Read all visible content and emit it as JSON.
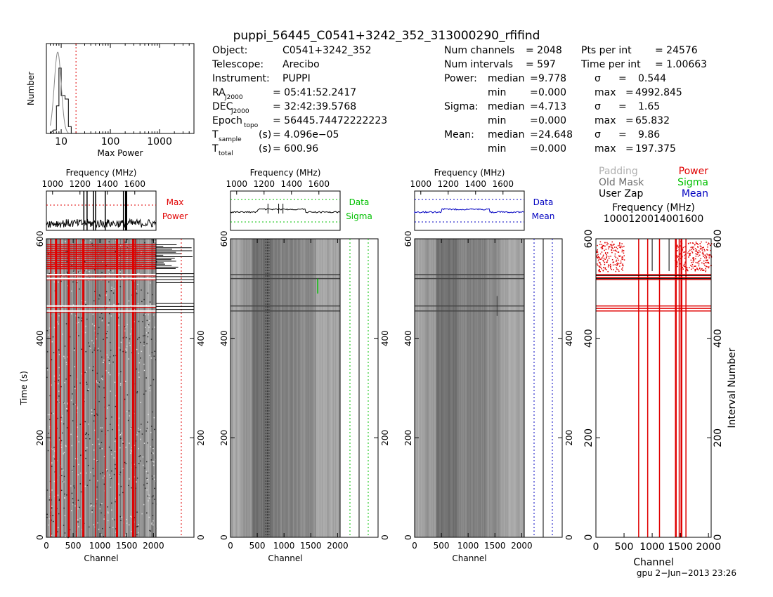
{
  "title": "puppi_56445_C0541+3242_352_313000290_rfifind",
  "info_left": [
    {
      "label": "Object:",
      "value": "C0541+3242_352"
    },
    {
      "label": "Telescope:",
      "value": "Arecibo"
    },
    {
      "label": "Instrument:",
      "value": "PUPPI"
    }
  ],
  "coords": [
    {
      "sym": "RA",
      "sub": "J2000",
      "unit": "",
      "value": "= 05:41:52.2417"
    },
    {
      "sym": "DEC",
      "sub": "J2000",
      "unit": "",
      "value": "= 32:42:39.5768"
    },
    {
      "sym": "Epoch",
      "sub": "topo",
      "unit": "",
      "value": "= 56445.74472222223"
    },
    {
      "sym": "T",
      "sub": "sample",
      "unit": "(s)",
      "value": "= 4.096e−05"
    },
    {
      "sym": "T",
      "sub": "total",
      "unit": "(s)",
      "value": "= 600.96"
    }
  ],
  "stats_top": [
    {
      "label": "Num channels",
      "value": "= 2048",
      "label2": "Pts per int",
      "value2": "= 24576"
    },
    {
      "label": "Num intervals",
      "value": "= 597",
      "label2": "Time per int",
      "value2": "= 1.00663"
    }
  ],
  "stats": [
    {
      "name": "Power:",
      "median": "9.778",
      "min": "0.000",
      "sigma": "0.544",
      "max": "4992.845"
    },
    {
      "name": "Sigma:",
      "median": "4.713",
      "min": "0.000",
      "sigma": "1.65",
      "max": "65.832"
    },
    {
      "name": "Mean:",
      "median": "24.648",
      "min": "0.000",
      "sigma": "9.86",
      "max": "197.375"
    }
  ],
  "stat_words": {
    "median": "median",
    "min": "min",
    "sigma": "σ",
    "max": "max",
    "eq": "="
  },
  "legend": [
    {
      "text": "Padding",
      "color": "#b0b0b0"
    },
    {
      "text": "Power",
      "color": "#e00000"
    },
    {
      "text": "Old Mask",
      "color": "#707070"
    },
    {
      "text": "Sigma",
      "color": "#00c000"
    },
    {
      "text": "User Zap",
      "color": "#000000"
    },
    {
      "text": "Mean",
      "color": "#0000c0"
    }
  ],
  "labels": {
    "frequency": "Frequency (MHz)",
    "channel": "Channel",
    "time": "Time (s)",
    "interval": "Interval Number",
    "number": "Number",
    "max_power": "Max Power",
    "max_label_1": "Max",
    "max_label_2": "Power",
    "data": "Data",
    "sigma": "Sigma",
    "mean": "Mean"
  },
  "footer": "gpu   2−Jun−2013 23:26",
  "colors": {
    "red": "#e00000",
    "green": "#00c000",
    "blue": "#0000c0",
    "black": "#000000"
  },
  "chart_data": [
    {
      "type": "histogram",
      "xscale": "log",
      "xlabel": "Max Power",
      "ylabel": "Number",
      "xlim": [
        5,
        5000
      ],
      "x_ticks": [
        10,
        100,
        1000
      ],
      "threshold": 20,
      "hist_x": [
        7,
        8,
        9,
        10,
        12,
        14
      ],
      "hist_y": [
        0.05,
        0.4,
        0.95,
        0.55,
        0.5,
        0.1
      ]
    },
    {
      "type": "heatmap",
      "name": "max_power_image",
      "xlabel": "Channel",
      "ylabel": "Time (s)",
      "xlim": [
        0,
        2048
      ],
      "ylim": [
        0,
        600
      ],
      "x_ticks": [
        0,
        500,
        1000,
        1500,
        2000
      ],
      "y_ticks": [
        0,
        200,
        400,
        600
      ],
      "freq_ticks": [
        1000,
        1200,
        1400,
        1600
      ],
      "freq_range": [
        955,
        1755
      ],
      "masked_channels": [
        80,
        180,
        260,
        420,
        560,
        680,
        700,
        920,
        1100,
        1320,
        1450,
        1620,
        1660
      ],
      "masked_times": [
        465,
        455,
        528,
        520
      ],
      "flag_zone": [
        540,
        590
      ]
    },
    {
      "type": "heatmap",
      "name": "sigma_image",
      "xlabel": "Channel",
      "xlim": [
        0,
        2048
      ],
      "ylim": [
        0,
        600
      ],
      "x_ticks": [
        0,
        500,
        1000,
        1500,
        2000
      ],
      "y_ticks": [
        0,
        200,
        400,
        600
      ],
      "freq_ticks": [
        1000,
        1200,
        1400,
        1600
      ]
    },
    {
      "type": "heatmap",
      "name": "mean_image",
      "xlabel": "Channel",
      "xlim": [
        0,
        2048
      ],
      "ylim": [
        0,
        600
      ],
      "x_ticks": [
        0,
        500,
        1000,
        1500,
        2000
      ],
      "y_ticks": [
        0,
        200,
        400,
        600
      ],
      "freq_ticks": [
        1000,
        1200,
        1400,
        1600
      ]
    },
    {
      "type": "mask",
      "name": "mask_image",
      "xlabel": "Channel",
      "ylabel": "Interval Number",
      "xlim": [
        0,
        2048
      ],
      "ylim": [
        0,
        600
      ],
      "x_ticks": [
        0,
        500,
        1000,
        1500,
        2000
      ],
      "y_ticks": [
        0,
        200,
        400,
        600
      ],
      "freq_ticks": [
        1000,
        1200,
        1400,
        1600
      ],
      "masked_channels": [
        760,
        920,
        1130,
        1420,
        1480,
        1520,
        1600
      ],
      "masked_intervals": [
        455,
        460,
        465,
        518,
        522,
        528
      ]
    }
  ]
}
